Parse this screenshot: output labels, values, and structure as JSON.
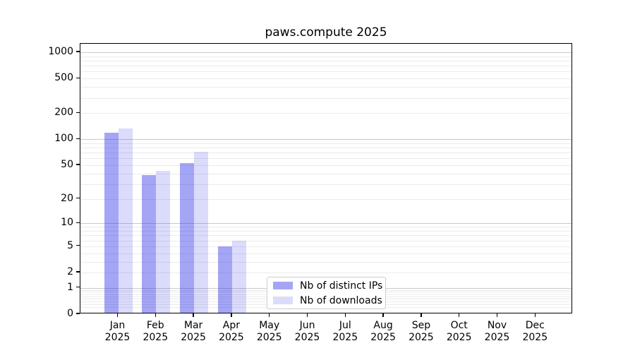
{
  "title": "paws.compute 2025",
  "colors": {
    "distinct_ips_fill": "rgba(40,40,230,0.42)",
    "downloads_fill": "rgba(40,40,230,0.17)",
    "major_grid": "#c9c9c9",
    "minor_grid": "#ebebeb",
    "axis": "#000000"
  },
  "chart_data": {
    "type": "bar",
    "title": "paws.compute 2025",
    "xlabel": "",
    "ylabel": "",
    "x_year": "2025",
    "categories": [
      "Jan",
      "Feb",
      "Mar",
      "Apr",
      "May",
      "Jun",
      "Jul",
      "Aug",
      "Sep",
      "Oct",
      "Nov",
      "Dec"
    ],
    "series": [
      {
        "name": "Nb of distinct IPs",
        "color": "rgba(40,40,230,0.42)",
        "values": [
          119,
          38,
          53,
          5,
          0,
          0,
          0,
          0,
          0,
          0,
          0,
          0
        ]
      },
      {
        "name": "Nb of downloads",
        "color": "rgba(40,40,230,0.17)",
        "values": [
          132,
          43,
          72,
          6,
          0,
          0,
          0,
          0,
          0,
          0,
          0,
          0
        ]
      }
    ],
    "y_scale": "log10(value+1)",
    "y_ticks": [
      1000,
      500,
      200,
      100,
      50,
      20,
      10,
      5,
      2,
      1,
      0
    ],
    "ylim": [
      0,
      1250
    ],
    "grid": true,
    "legend_position": "lower center"
  }
}
